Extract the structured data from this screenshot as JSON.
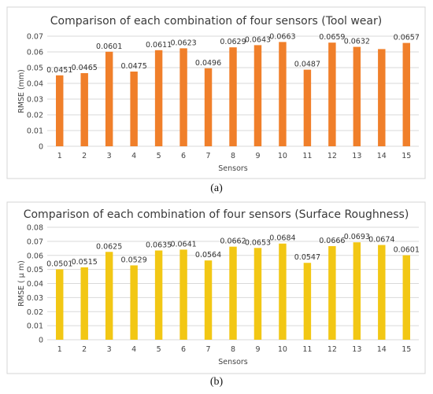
{
  "chart_data": [
    {
      "type": "bar",
      "title": "Comparison of each combination of four sensors (Tool wear)",
      "xlabel": "Sensors",
      "ylabel": "RMSE (mm)",
      "ylim": [
        0,
        0.07
      ],
      "ytick_step": 0.01,
      "y_ticks": [
        "0",
        "0.01",
        "0.02",
        "0.03",
        "0.04",
        "0.05",
        "0.06",
        "0.07"
      ],
      "categories": [
        "1",
        "2",
        "3",
        "4",
        "5",
        "6",
        "7",
        "8",
        "9",
        "10",
        "11",
        "12",
        "13",
        "14",
        "15"
      ],
      "values": [
        0.0451,
        0.0465,
        0.0601,
        0.0475,
        0.0611,
        0.0623,
        0.0496,
        0.0629,
        0.0643,
        0.0663,
        0.0487,
        0.0659,
        0.0632,
        0.0618,
        0.0657
      ],
      "data_labels": [
        "0.0451",
        "0.0465",
        "0.0601",
        "0.0475",
        "0.0611",
        "0.0623",
        "0.0496",
        "0.0629",
        "0.0643",
        "0.0663",
        "0.0487",
        "0.0659",
        "0.0632",
        "",
        "0.0657"
      ],
      "grid": true,
      "bar_color": "#f07f2a",
      "caption": "(a)"
    },
    {
      "type": "bar",
      "title": "Comparison of each combination of four sensors (Surface Roughness)",
      "xlabel": "Sensors",
      "ylabel": "RMSE ( μ m)",
      "ylim": [
        0,
        0.08
      ],
      "ytick_step": 0.01,
      "y_ticks": [
        "0",
        "0.01",
        "0.02",
        "0.03",
        "0.04",
        "0.05",
        "0.06",
        "0.07",
        "0.08"
      ],
      "categories": [
        "1",
        "2",
        "3",
        "4",
        "5",
        "6",
        "7",
        "8",
        "9",
        "10",
        "11",
        "12",
        "13",
        "14",
        "15"
      ],
      "values": [
        0.0501,
        0.0515,
        0.0625,
        0.0529,
        0.0635,
        0.0641,
        0.0564,
        0.0662,
        0.0653,
        0.0684,
        0.0547,
        0.0666,
        0.0693,
        0.0674,
        0.0601
      ],
      "data_labels": [
        "0.0501",
        "0.0515",
        "0.0625",
        "0.0529",
        "0.0635",
        "0.0641",
        "0.0564",
        "0.0662",
        "0.0653",
        "0.0684",
        "0.0547",
        "0.0666",
        "0.0693",
        "0.0674",
        "0.0601"
      ],
      "grid": true,
      "bar_color": "#f2c714",
      "caption": "(b)"
    }
  ]
}
